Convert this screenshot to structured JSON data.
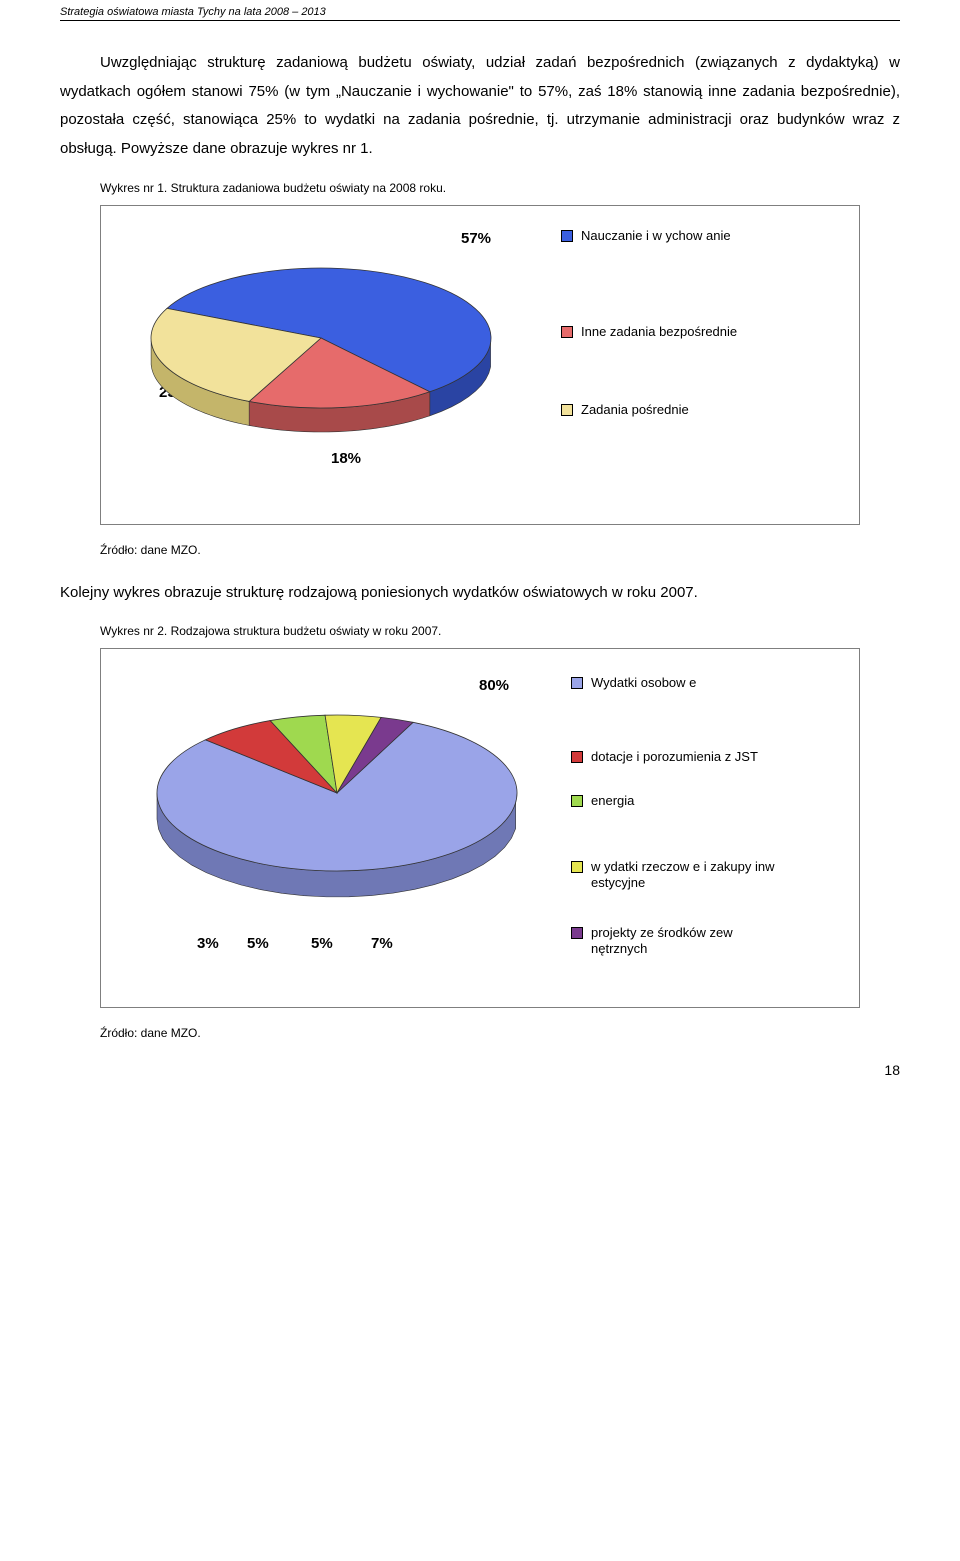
{
  "header": "Strategia oświatowa miasta Tychy na lata 2008 – 2013",
  "paragraph1": "Uwzględniając strukturę zadaniową budżetu oświaty, udział zadań bezpośrednich (związanych z dydaktyką) w wydatkach ogółem stanowi 75% (w tym „Nauczanie i wychowanie\" to 57%, zaś 18% stanowią inne zadania bezpośrednie), pozostała część, stanowiąca 25% to wydatki na zadania pośrednie, tj. utrzymanie administracji oraz budynków wraz z obsługą. Powyższe dane obrazuje wykres nr 1.",
  "chart1": {
    "caption": "Wykres nr 1. Struktura zadaniowa budżetu oświaty na 2008 roku.",
    "source": "Źródło: dane MZO.",
    "slices": [
      {
        "label": "Nauczanie i w ychow anie",
        "value": 57,
        "color_top": "#3b5fe0",
        "color_side": "#2a44a3",
        "pct": "57%"
      },
      {
        "label": "Inne zadania bezpośrednie",
        "value": 18,
        "color_top": "#e66b6b",
        "color_side": "#a84a4a",
        "pct": "18%"
      },
      {
        "label": "Zadania pośrednie",
        "value": 25,
        "color_top": "#f2e29b",
        "color_side": "#c4b56a",
        "pct": "25%"
      }
    ]
  },
  "paragraph2": "Kolejny wykres obrazuje strukturę rodzajową poniesionych wydatków oświatowych w roku 2007.",
  "chart2": {
    "caption": "Wykres nr 2. Rodzajowa struktura budżetu oświaty w roku 2007.",
    "source": "Źródło: dane MZO.",
    "slices": [
      {
        "label": "Wydatki osobow e",
        "value": 80,
        "color_top": "#9aa4e8",
        "color_side": "#6f78b5",
        "pct": "80%"
      },
      {
        "label": "dotacje i porozumienia z JST",
        "value": 7,
        "color_top": "#d23a3a",
        "color_side": "#932828",
        "pct": "7%"
      },
      {
        "label": "energia",
        "value": 5,
        "color_top": "#9fd94f",
        "color_side": "#6fa036",
        "pct": "5%"
      },
      {
        "label": "w ydatki rzeczow e i zakupy inw estycyjne",
        "value": 5,
        "color_top": "#e5e551",
        "color_side": "#a4a438",
        "pct": "5%"
      },
      {
        "label": "projekty ze środków zew nętrznych",
        "value": 3,
        "color_top": "#7a3a8e",
        "color_side": "#552764",
        "pct": "3%"
      }
    ]
  },
  "page_number": "18"
}
